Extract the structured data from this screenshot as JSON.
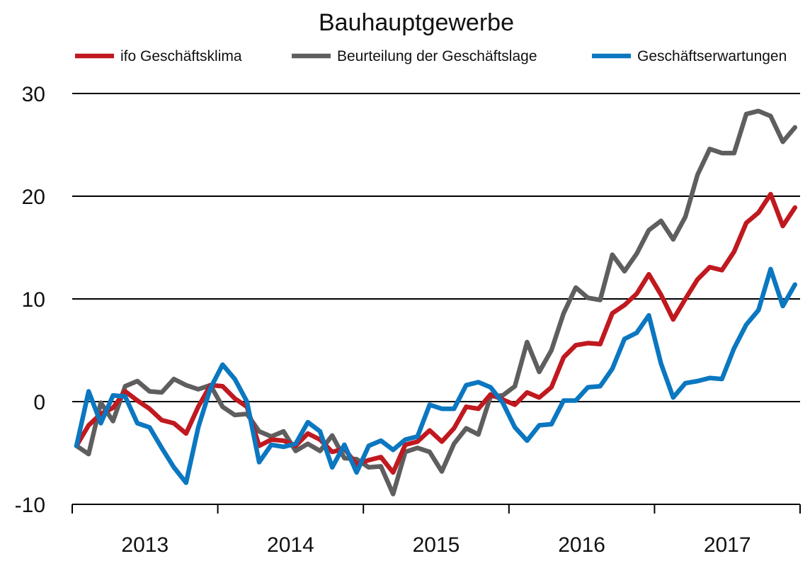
{
  "chart_data": {
    "type": "line",
    "title": "Bauhauptgewerbe",
    "xlabel": "",
    "ylabel": "",
    "ylim": [
      -10,
      30
    ],
    "yticks": [
      30,
      20,
      10,
      0,
      -10
    ],
    "ytick_labels": [
      "30",
      "20",
      "10",
      "0",
      "-10"
    ],
    "x_start": "2013-01",
    "x_period": "monthly",
    "years": [
      "2013",
      "2014",
      "2015",
      "2016",
      "2017"
    ],
    "grid": true,
    "legend_position": "top",
    "series": [
      {
        "name": "ifo Geschäftsklima",
        "color": "#c0191f",
        "values": [
          -4.3,
          -2.3,
          -1.2,
          -0.6,
          1.0,
          0.1,
          -0.7,
          -1.8,
          -2.1,
          -3.1,
          -0.5,
          1.6,
          1.5,
          0.3,
          -0.5,
          -4.3,
          -3.7,
          -3.8,
          -4.3,
          -3.1,
          -3.7,
          -4.9,
          -4.6,
          -6.1,
          -5.7,
          -5.4,
          -6.9,
          -4.2,
          -3.9,
          -2.8,
          -3.9,
          -2.6,
          -0.5,
          -0.7,
          0.7,
          0.2,
          -0.3,
          0.9,
          0.4,
          1.4,
          4.3,
          5.5,
          5.7,
          5.6,
          8.6,
          9.4,
          10.5,
          12.4,
          10.4,
          8.0,
          10.0,
          11.9,
          13.1,
          12.8,
          14.6,
          17.4,
          18.4,
          20.2,
          17.1,
          18.9
        ]
      },
      {
        "name": "Beurteilung der Geschäftslage",
        "color": "#5e5e5e",
        "values": [
          -4.3,
          -5.1,
          -0.1,
          -1.9,
          1.5,
          2.0,
          1.0,
          0.9,
          2.2,
          1.6,
          1.2,
          1.6,
          -0.5,
          -1.3,
          -1.2,
          -2.9,
          -3.4,
          -2.9,
          -4.8,
          -4.1,
          -4.8,
          -3.3,
          -5.5,
          -5.6,
          -6.4,
          -6.3,
          -9.0,
          -4.9,
          -4.5,
          -4.9,
          -6.8,
          -4.1,
          -2.6,
          -3.2,
          0.5,
          0.6,
          1.5,
          5.8,
          2.9,
          5.0,
          8.6,
          11.1,
          10.1,
          9.9,
          14.3,
          12.7,
          14.4,
          16.7,
          17.6,
          15.8,
          18.0,
          22.1,
          24.6,
          24.2,
          24.2,
          28.0,
          28.3,
          27.8,
          25.3,
          26.7
        ]
      },
      {
        "name": "Geschäftserwartungen",
        "color": "#0b77c0",
        "values": [
          -4.3,
          1.0,
          -2.1,
          0.6,
          0.5,
          -2.1,
          -2.5,
          -4.5,
          -6.4,
          -7.9,
          -2.5,
          1.3,
          3.6,
          2.2,
          0.0,
          -5.9,
          -4.2,
          -4.4,
          -4.1,
          -2.0,
          -2.9,
          -6.4,
          -4.2,
          -6.9,
          -4.3,
          -3.8,
          -4.7,
          -3.7,
          -3.4,
          -0.3,
          -0.7,
          -0.7,
          1.6,
          1.9,
          1.4,
          -0.1,
          -2.5,
          -3.8,
          -2.3,
          -2.2,
          0.1,
          0.1,
          1.4,
          1.5,
          3.2,
          6.1,
          6.7,
          8.4,
          3.7,
          0.4,
          1.8,
          2.0,
          2.3,
          2.2,
          5.2,
          7.5,
          8.9,
          12.9,
          9.3,
          11.4
        ]
      }
    ]
  }
}
